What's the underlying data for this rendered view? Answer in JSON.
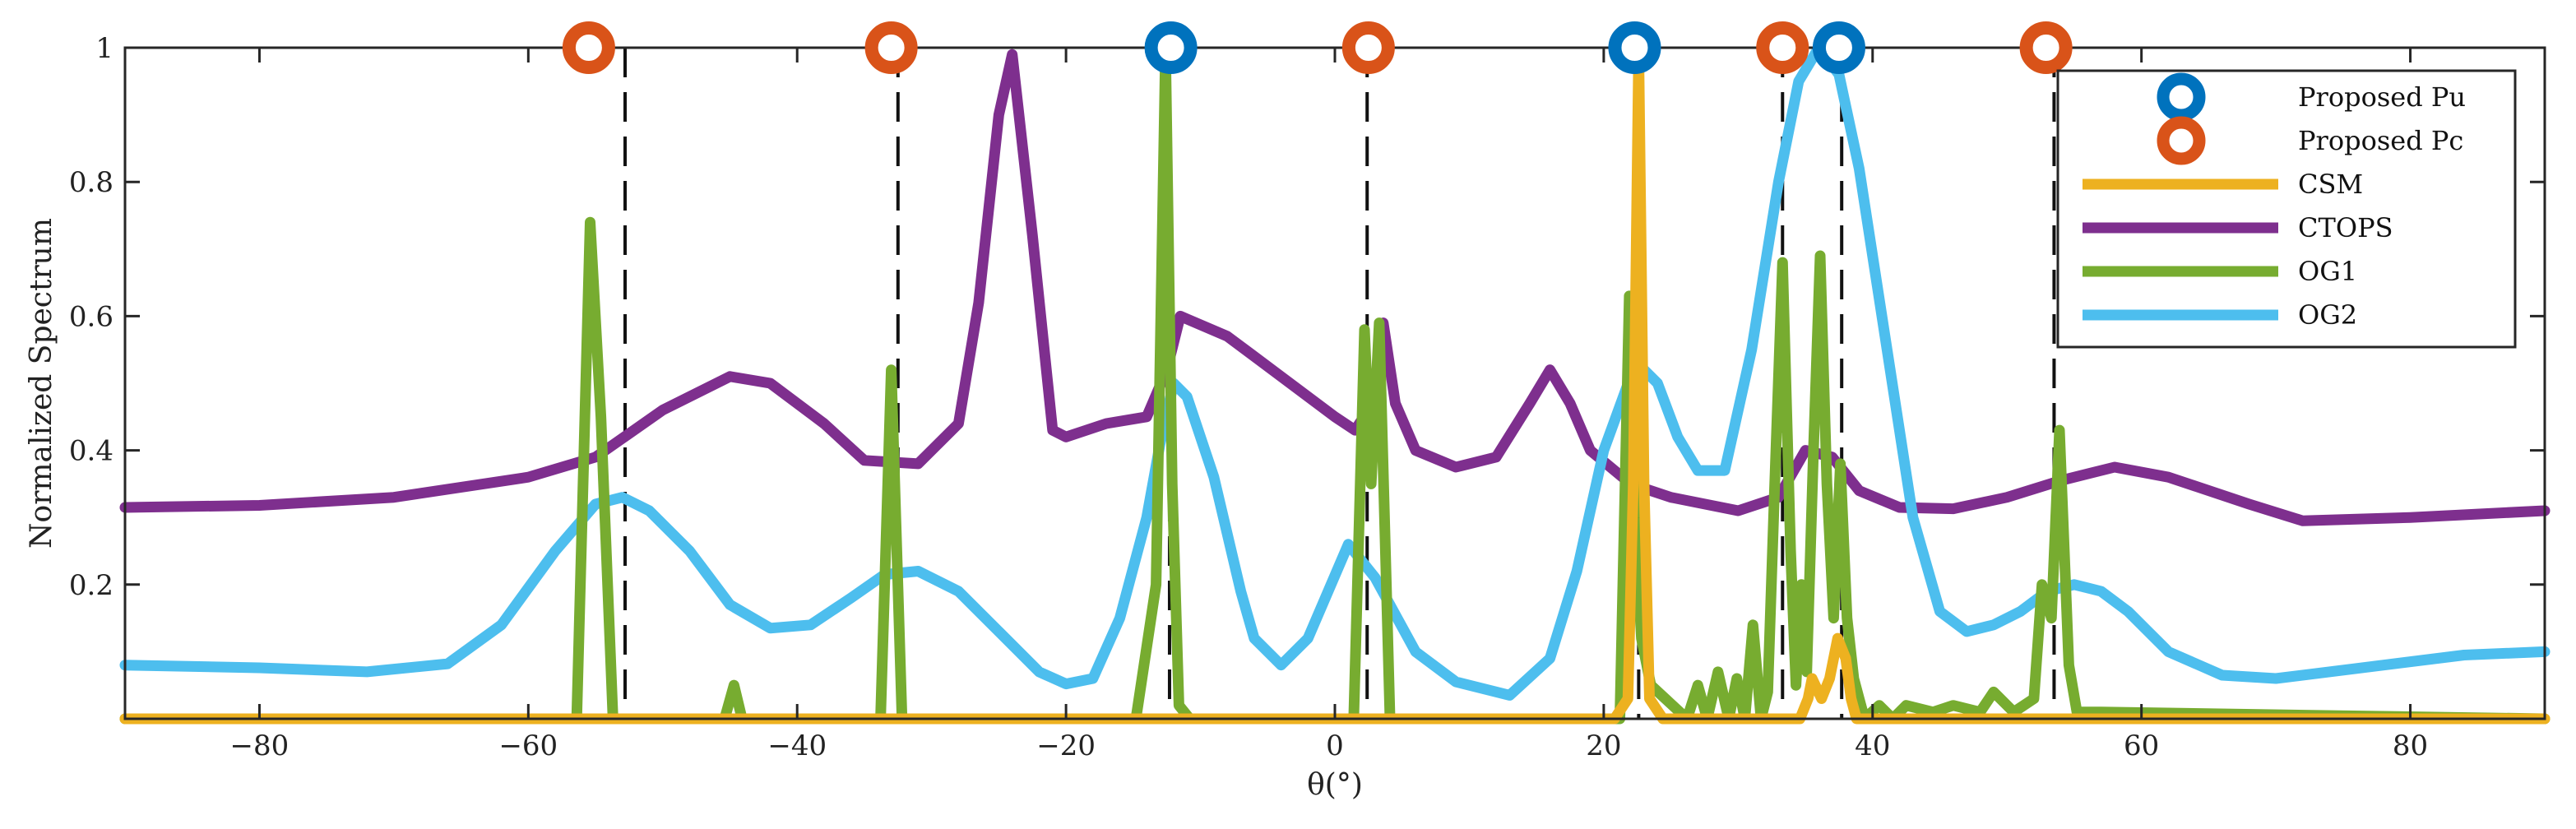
{
  "chart_data": {
    "type": "line",
    "title": "",
    "xlabel": "θ(°)",
    "ylabel": "Normalized Spectrum",
    "xlim": [
      -90,
      90
    ],
    "ylim": [
      0,
      1
    ],
    "xticks": [
      -80,
      -60,
      -40,
      -20,
      0,
      20,
      40,
      60,
      80
    ],
    "yticks": [
      0.2,
      0.4,
      0.6,
      0.8,
      1
    ],
    "xtick_labels": [
      "−80",
      "−60",
      "−40",
      "−20",
      "0",
      "20",
      "40",
      "60",
      "80"
    ],
    "ytick_labels": [
      "0.2",
      "0.4",
      "0.6",
      "0.8",
      "1"
    ],
    "grid": false,
    "legend_position": "top-right",
    "true_doas": [
      -52.8,
      -32.5,
      -12.3,
      2.4,
      22.6,
      33.3,
      37.7,
      53.5
    ],
    "markers": [
      {
        "name": "Proposed Pu",
        "color": "#0072BD",
        "x": [
          -12.2,
          22.3,
          37.5
        ],
        "y": 1.0
      },
      {
        "name": "Proposed Pc",
        "color": "#D95319",
        "x": [
          -55.5,
          -33.0,
          2.5,
          33.3,
          52.9
        ],
        "y": 1.0
      }
    ],
    "series": [
      {
        "name": "CSM",
        "color": "#EDB120",
        "x": [
          -90,
          20.8,
          21.8,
          22.2,
          22.6,
          23.0,
          23.4,
          24.4,
          34.6,
          35.2,
          35.5,
          36.2,
          36.8,
          37.4,
          38.0,
          38.4,
          38.8,
          90
        ],
        "y": [
          0,
          0,
          0.03,
          0.35,
          1.0,
          0.35,
          0.03,
          0,
          0,
          0.03,
          0.06,
          0.03,
          0.06,
          0.12,
          0.09,
          0.03,
          0,
          0
        ]
      },
      {
        "name": "CTOPS",
        "color": "#7E2F8E",
        "x": [
          -90,
          -80,
          -70,
          -60,
          -55,
          -50,
          -45,
          -42,
          -38,
          -35,
          -31,
          -28,
          -26.5,
          -25,
          -24,
          -22.5,
          -21,
          -20,
          -17,
          -14,
          -12.5,
          -11.5,
          -8,
          -4,
          0,
          1.5,
          2.8,
          3.6,
          4.5,
          6,
          9,
          12,
          14.5,
          16,
          17.5,
          19,
          22,
          25,
          30,
          33,
          35,
          37,
          39,
          42,
          46,
          50,
          54,
          58,
          62,
          68,
          72,
          80,
          90
        ],
        "x_note": "",
        "y": [
          0.315,
          0.318,
          0.33,
          0.36,
          0.39,
          0.46,
          0.51,
          0.5,
          0.44,
          0.385,
          0.38,
          0.44,
          0.62,
          0.9,
          0.99,
          0.72,
          0.43,
          0.42,
          0.44,
          0.45,
          0.52,
          0.6,
          0.57,
          0.51,
          0.45,
          0.43,
          0.47,
          0.59,
          0.47,
          0.4,
          0.375,
          0.39,
          0.47,
          0.52,
          0.47,
          0.4,
          0.35,
          0.33,
          0.31,
          0.33,
          0.4,
          0.39,
          0.34,
          0.315,
          0.313,
          0.33,
          0.355,
          0.375,
          0.36,
          0.32,
          0.295,
          0.3,
          0.31
        ]
      },
      {
        "name": "OG1",
        "color": "#77AC30",
        "x": [
          -90,
          -56.4,
          -55.4,
          -54.6,
          -53.7,
          -45.4,
          -44.7,
          -44.1,
          -33.8,
          -33.0,
          -32.2,
          -28,
          -14.8,
          -13.3,
          -12.6,
          -12.1,
          -11.6,
          -10.8,
          1.4,
          2.2,
          2.7,
          3.3,
          4.1,
          21.2,
          21.9,
          22.3,
          22.8,
          23.5,
          26.2,
          27.0,
          27.7,
          28.5,
          29.3,
          29.9,
          30.5,
          31.1,
          31.7,
          32.2,
          32.7,
          33.3,
          33.9,
          34.3,
          34.7,
          35.1,
          35.6,
          36.1,
          36.6,
          37.1,
          37.6,
          38.1,
          38.6,
          39.0,
          39.4,
          40.5,
          41.5,
          42.5,
          44.5,
          46.0,
          48.0,
          49.0,
          50.5,
          52.0,
          52.6,
          53.3,
          53.9,
          54.6,
          55.2,
          57.0,
          90
        ],
        "y": [
          0,
          0,
          0.74,
          0.45,
          0,
          0,
          0.05,
          0,
          0,
          0.52,
          0,
          0,
          0,
          0.2,
          1.0,
          0.35,
          0.02,
          0,
          0,
          0.58,
          0.35,
          0.59,
          0,
          0,
          0.63,
          0.3,
          0.12,
          0.05,
          0,
          0.05,
          0,
          0.07,
          0,
          0.06,
          0,
          0.14,
          0,
          0.04,
          0.34,
          0.68,
          0.25,
          0.05,
          0.2,
          0.07,
          0.4,
          0.69,
          0.35,
          0.15,
          0.38,
          0.15,
          0.06,
          0.03,
          0,
          0.02,
          0,
          0.02,
          0.01,
          0.02,
          0.01,
          0.04,
          0.01,
          0.03,
          0.2,
          0.15,
          0.43,
          0.08,
          0.01,
          0.01,
          0
        ]
      },
      {
        "name": "OG2",
        "color": "#4DBEEE",
        "x": [
          -90,
          -80,
          -72,
          -66,
          -62,
          -58,
          -55,
          -53,
          -51,
          -48,
          -45,
          -42,
          -39,
          -36,
          -33.5,
          -31,
          -28,
          -25,
          -22,
          -20,
          -18,
          -16,
          -14,
          -13,
          -12,
          -11,
          -9,
          -7,
          -6,
          -4,
          -2,
          1,
          3,
          6,
          9,
          13,
          16,
          18,
          20,
          22,
          23,
          24,
          25.5,
          27,
          29,
          31,
          33,
          34.5,
          36,
          37.5,
          39,
          41,
          43,
          45,
          47,
          49,
          51,
          53,
          55,
          57,
          59,
          62,
          66,
          70,
          76,
          84,
          90
        ],
        "y": [
          0.08,
          0.076,
          0.07,
          0.082,
          0.14,
          0.25,
          0.32,
          0.33,
          0.31,
          0.25,
          0.17,
          0.135,
          0.14,
          0.18,
          0.215,
          0.22,
          0.19,
          0.13,
          0.07,
          0.052,
          0.06,
          0.15,
          0.3,
          0.41,
          0.5,
          0.48,
          0.36,
          0.19,
          0.12,
          0.08,
          0.12,
          0.26,
          0.21,
          0.1,
          0.055,
          0.035,
          0.09,
          0.22,
          0.4,
          0.51,
          0.52,
          0.5,
          0.42,
          0.37,
          0.37,
          0.55,
          0.8,
          0.95,
          1.0,
          0.96,
          0.82,
          0.56,
          0.3,
          0.16,
          0.13,
          0.14,
          0.16,
          0.19,
          0.2,
          0.19,
          0.16,
          0.1,
          0.065,
          0.06,
          0.075,
          0.095,
          0.1
        ]
      }
    ]
  }
}
